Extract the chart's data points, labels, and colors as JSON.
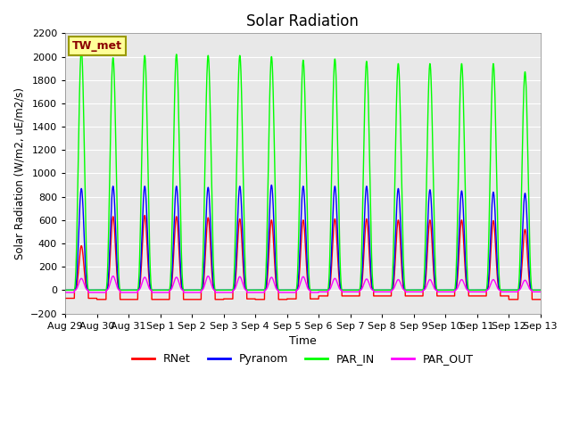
{
  "title": "Solar Radiation",
  "xlabel": "Time",
  "ylabel": "Solar Radiation (W/m2, uE/m2/s)",
  "ylim": [
    -200,
    2200
  ],
  "yticks": [
    -200,
    0,
    200,
    400,
    600,
    800,
    1000,
    1200,
    1400,
    1600,
    1800,
    2000,
    2200
  ],
  "background_color": "#e8e8e8",
  "fig_background": "#ffffff",
  "annotation_label": "TW_met",
  "annotation_box_color": "#ffff99",
  "annotation_box_edge": "#999900",
  "series": {
    "RNet": {
      "color": "red",
      "linewidth": 1.0
    },
    "Pyranom": {
      "color": "blue",
      "linewidth": 1.0
    },
    "PAR_IN": {
      "color": "#00ff00",
      "linewidth": 1.0
    },
    "PAR_OUT": {
      "color": "magenta",
      "linewidth": 1.0
    }
  },
  "x_tick_labels": [
    "Aug 29",
    "Aug 30",
    "Aug 31",
    "Sep 1",
    "Sep 2",
    "Sep 3",
    "Sep 4",
    "Sep 5",
    "Sep 6",
    "Sep 7",
    "Sep 8",
    "Sep 9",
    "Sep 10",
    "Sep 11",
    "Sep 12",
    "Sep 13"
  ],
  "n_days": 15,
  "day_peaks": {
    "RNet": [
      380,
      630,
      640,
      630,
      620,
      610,
      600,
      600,
      610,
      610,
      600,
      600,
      600,
      595,
      520
    ],
    "Pyranom": [
      870,
      890,
      890,
      890,
      880,
      890,
      900,
      890,
      890,
      890,
      870,
      860,
      850,
      840,
      830
    ],
    "PAR_IN": [
      2060,
      1990,
      2010,
      2020,
      2010,
      2010,
      2000,
      1970,
      1980,
      1960,
      1940,
      1940,
      1940,
      1940,
      1870
    ],
    "PAR_OUT": [
      100,
      120,
      110,
      110,
      120,
      115,
      110,
      115,
      100,
      95,
      90,
      90,
      90,
      90,
      85
    ]
  },
  "day_troughs": {
    "RNet": [
      -70,
      -80,
      -80,
      -80,
      -80,
      -75,
      -80,
      -75,
      -50,
      -50,
      -50,
      -50,
      -50,
      -50,
      -80
    ],
    "Pyranom": [
      0,
      0,
      0,
      0,
      0,
      0,
      0,
      0,
      0,
      0,
      0,
      0,
      0,
      0,
      0
    ],
    "PAR_IN": [
      0,
      0,
      0,
      0,
      0,
      0,
      0,
      0,
      0,
      0,
      0,
      0,
      0,
      0,
      0
    ],
    "PAR_OUT": [
      -20,
      -20,
      -20,
      -20,
      -20,
      -20,
      -20,
      -20,
      -15,
      -15,
      -15,
      -15,
      -15,
      -15,
      -15
    ]
  }
}
